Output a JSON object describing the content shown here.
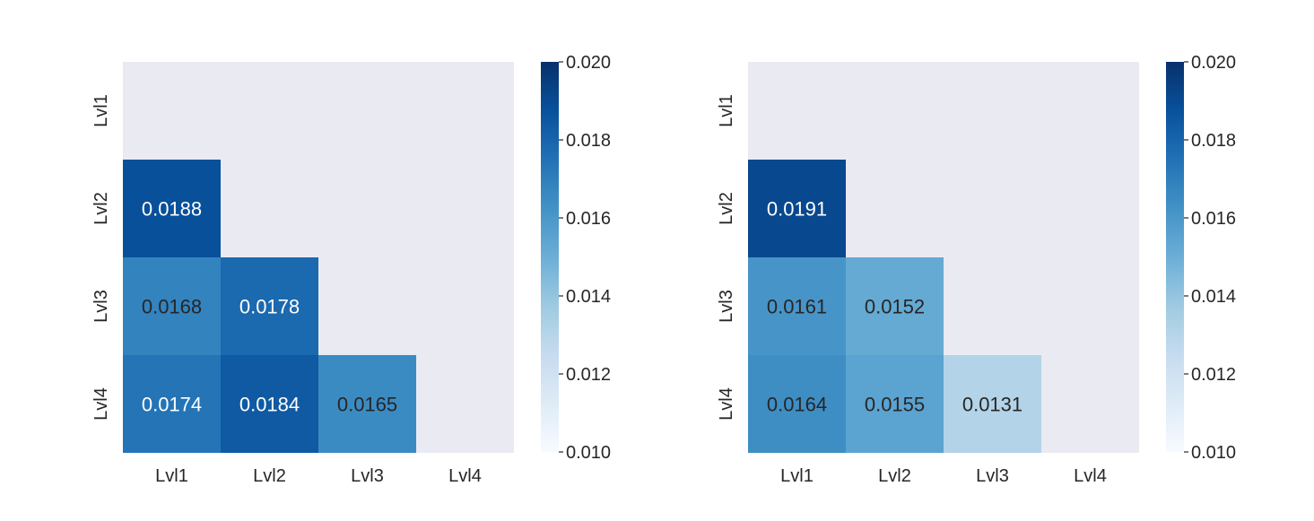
{
  "chart_data": [
    {
      "type": "heatmap",
      "title": "",
      "xlabel": "",
      "ylabel": "",
      "x_categories": [
        "Lvl1",
        "Lvl2",
        "Lvl3",
        "Lvl4"
      ],
      "y_categories": [
        "Lvl1",
        "Lvl2",
        "Lvl3",
        "Lvl4"
      ],
      "mask": "upper-triangle-including-diagonal",
      "values": [
        [
          null,
          null,
          null,
          null
        ],
        [
          0.0188,
          null,
          null,
          null
        ],
        [
          0.0168,
          0.0178,
          null,
          null
        ],
        [
          0.0174,
          0.0184,
          0.0165,
          null
        ]
      ],
      "value_labels": [
        [
          null,
          null,
          null,
          null
        ],
        [
          "0.0188",
          null,
          null,
          null
        ],
        [
          "0.0168",
          "0.0178",
          null,
          null
        ],
        [
          "0.0174",
          "0.0184",
          "0.0165",
          null
        ]
      ],
      "colorbar": {
        "colormap": "Blues",
        "vmin": 0.01,
        "vmax": 0.02,
        "ticks": [
          0.01,
          0.012,
          0.014,
          0.016,
          0.018,
          0.02
        ],
        "tick_labels": [
          "0.010",
          "0.012",
          "0.014",
          "0.016",
          "0.018",
          "0.020"
        ]
      },
      "background_color": "#eaeaf2",
      "grid": false
    },
    {
      "type": "heatmap",
      "title": "",
      "xlabel": "",
      "ylabel": "",
      "x_categories": [
        "Lvl1",
        "Lvl2",
        "Lvl3",
        "Lvl4"
      ],
      "y_categories": [
        "Lvl1",
        "Lvl2",
        "Lvl3",
        "Lvl4"
      ],
      "mask": "upper-triangle-including-diagonal",
      "values": [
        [
          null,
          null,
          null,
          null
        ],
        [
          0.0191,
          null,
          null,
          null
        ],
        [
          0.0161,
          0.0152,
          null,
          null
        ],
        [
          0.0164,
          0.0155,
          0.0131,
          null
        ]
      ],
      "value_labels": [
        [
          null,
          null,
          null,
          null
        ],
        [
          "0.0191",
          null,
          null,
          null
        ],
        [
          "0.0161",
          "0.0152",
          null,
          null
        ],
        [
          "0.0164",
          "0.0155",
          "0.0131",
          null
        ]
      ],
      "colorbar": {
        "colormap": "Blues",
        "vmin": 0.01,
        "vmax": 0.02,
        "ticks": [
          0.01,
          0.012,
          0.014,
          0.016,
          0.018,
          0.02
        ],
        "tick_labels": [
          "0.010",
          "0.012",
          "0.014",
          "0.016",
          "0.018",
          "0.020"
        ]
      },
      "background_color": "#eaeaf2",
      "grid": false
    }
  ]
}
